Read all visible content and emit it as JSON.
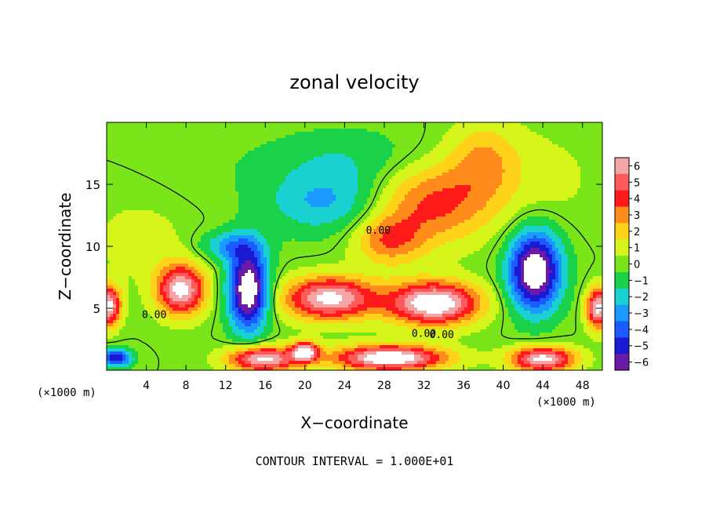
{
  "chart_data": {
    "type": "heatmap",
    "title": "zonal velocity",
    "xlabel": "X−coordinate",
    "ylabel": "Z−coordinate",
    "x_unit_left": "(×1000 m)",
    "x_unit_right": "(×1000 m)",
    "xlim": [
      0,
      50
    ],
    "ylim": [
      0,
      20
    ],
    "x_ticks": [
      4,
      8,
      12,
      16,
      20,
      24,
      28,
      32,
      36,
      40,
      44,
      48
    ],
    "x_tick_labels": [
      "4",
      "8",
      "12",
      "16",
      "20",
      "24",
      "28",
      "32",
      "36",
      "40",
      "44",
      "48"
    ],
    "y_ticks": [
      5,
      10,
      15
    ],
    "y_tick_labels": [
      "5",
      "10",
      "15"
    ],
    "colorbar": {
      "levels": [
        6,
        5,
        4,
        3,
        2,
        1,
        0,
        -1,
        -2,
        -3,
        -4,
        -5,
        -6
      ],
      "level_labels": [
        "6",
        "5",
        "4",
        "3",
        "2",
        "1",
        "0",
        "−1",
        "−2",
        "−3",
        "−4",
        "−5",
        "−6"
      ],
      "colors": [
        "#f4a6a6",
        "#ff5a5a",
        "#ff1a1a",
        "#ff8c1a",
        "#ffd21a",
        "#d6f51a",
        "#7ae61a",
        "#1ad24a",
        "#1ad2d2",
        "#1a9aff",
        "#1a5aff",
        "#1a1ad2",
        "#6a1aa6"
      ]
    },
    "contour_labels": [
      {
        "text": "0.00",
        "x": 4.8,
        "y": 4.2
      },
      {
        "text": "0.00",
        "x": 27.4,
        "y": 11.0
      },
      {
        "text": "0.00",
        "x": 32.0,
        "y": 2.7
      },
      {
        "text": "0.00",
        "x": 33.8,
        "y": 2.6
      }
    ],
    "footer": "CONTOUR INTERVAL = 1.000E+01",
    "features": [
      {
        "x": 7.5,
        "z": 6.5,
        "rx": 2.4,
        "rz": 2.0,
        "v": 7.0
      },
      {
        "x": 14.3,
        "z": 6.5,
        "rx": 2.0,
        "rz": 3.2,
        "v": -8.0
      },
      {
        "x": 22.5,
        "z": 5.8,
        "rx": 4.5,
        "rz": 1.7,
        "v": 7.0
      },
      {
        "x": 33.0,
        "z": 5.4,
        "rx": 4.5,
        "rz": 1.7,
        "v": 8.0
      },
      {
        "x": 43.2,
        "z": 8.0,
        "rx": 2.6,
        "rz": 3.2,
        "v": -8.0
      },
      {
        "x": 28.5,
        "z": 1.0,
        "rx": 5.5,
        "rz": 1.0,
        "v": 8.0
      },
      {
        "x": 15.8,
        "z": 0.9,
        "rx": 3.5,
        "rz": 1.0,
        "v": 7.0
      },
      {
        "x": 44.0,
        "z": 0.9,
        "rx": 3.2,
        "rz": 1.0,
        "v": 7.0
      },
      {
        "x": 20.0,
        "z": 1.5,
        "rx": 1.3,
        "rz": 0.8,
        "v": 7.0
      },
      {
        "x": 1.0,
        "z": 1.0,
        "rx": 1.5,
        "rz": 0.7,
        "v": -5.5
      },
      {
        "x": 0.2,
        "z": 5.2,
        "rx": 1.2,
        "rz": 1.6,
        "v": 7.0
      },
      {
        "x": 49.6,
        "z": 5.0,
        "rx": 1.2,
        "rz": 1.6,
        "v": 7.0
      },
      {
        "x": 33.0,
        "z": 13.5,
        "rx": 6.0,
        "rz": 3.2,
        "v": 3.8
      },
      {
        "x": 38.0,
        "z": 17.0,
        "rx": 3.5,
        "rz": 3.0,
        "v": 2.4
      },
      {
        "x": 28.5,
        "z": 10.5,
        "rx": 3.5,
        "rz": 2.0,
        "v": 3.2
      },
      {
        "x": 22.0,
        "z": 13.5,
        "rx": 6.0,
        "rz": 2.5,
        "v": -2.6
      },
      {
        "x": 24.0,
        "z": 17.0,
        "rx": 8.0,
        "rz": 2.5,
        "v": -1.4
      },
      {
        "x": 12.5,
        "z": 10.0,
        "rx": 3.0,
        "rz": 1.2,
        "v": -2.8
      },
      {
        "x": 3.5,
        "z": 10.5,
        "rx": 5.0,
        "rz": 3.5,
        "v": 0.9
      },
      {
        "x": 44.0,
        "z": 15.5,
        "rx": 5.5,
        "rz": 4.0,
        "v": 0.8
      },
      {
        "x": 10.0,
        "z": 16.5,
        "rx": 6.0,
        "rz": 3.5,
        "v": -0.3
      }
    ]
  }
}
